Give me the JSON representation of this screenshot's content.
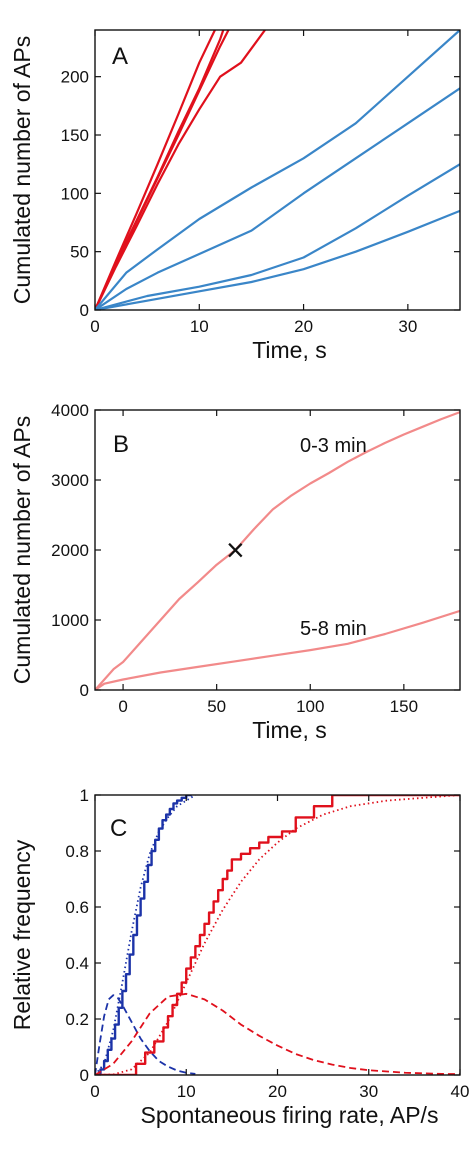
{
  "chart_data": [
    {
      "panel": "A",
      "type": "line",
      "xlabel": "Time, s",
      "ylabel": "Cumulated number of APs",
      "xlim": [
        0,
        35
      ],
      "ylim": [
        0,
        240
      ],
      "xticks": [
        0,
        10,
        20,
        30
      ],
      "yticks": [
        0,
        50,
        100,
        150,
        200
      ],
      "colors": {
        "red": "#e0101c",
        "blue": "#3a86c8"
      },
      "series": [
        {
          "color": "red",
          "x": [
            0,
            2,
            4,
            6,
            8,
            10,
            11.5
          ],
          "y": [
            0,
            42,
            83,
            125,
            168,
            212,
            240
          ]
        },
        {
          "color": "red",
          "x": [
            0,
            2,
            4,
            6,
            8,
            10,
            12,
            12.8
          ],
          "y": [
            0,
            38,
            76,
            113,
            150,
            188,
            226,
            240
          ]
        },
        {
          "color": "red",
          "x": [
            0,
            2,
            4,
            6,
            8,
            10,
            12,
            12.3
          ],
          "y": [
            0,
            40,
            77,
            114,
            153,
            190,
            232,
            240
          ]
        },
        {
          "color": "red",
          "x": [
            0,
            2,
            4,
            6,
            8,
            10,
            12,
            14,
            16.3
          ],
          "y": [
            0,
            37,
            72,
            108,
            142,
            172,
            200,
            212,
            240
          ]
        },
        {
          "color": "blue",
          "x": [
            0,
            3,
            6,
            10,
            15,
            20,
            25,
            30,
            35
          ],
          "y": [
            0,
            32,
            52,
            78,
            105,
            130,
            160,
            200,
            240
          ]
        },
        {
          "color": "blue",
          "x": [
            0,
            3,
            6,
            10,
            15,
            20,
            25,
            30,
            35
          ],
          "y": [
            0,
            18,
            32,
            48,
            68,
            100,
            130,
            160,
            190
          ]
        },
        {
          "color": "blue",
          "x": [
            0,
            5,
            10,
            15,
            20,
            25,
            30,
            35
          ],
          "y": [
            0,
            12,
            20,
            30,
            45,
            70,
            98,
            125
          ]
        },
        {
          "color": "blue",
          "x": [
            0,
            5,
            10,
            15,
            20,
            25,
            30,
            35
          ],
          "y": [
            0,
            8,
            16,
            24,
            35,
            50,
            67,
            85
          ]
        }
      ]
    },
    {
      "panel": "B",
      "type": "line",
      "xlabel": "Time, s",
      "ylabel": "Cumulated number of APs",
      "xlim": [
        -15,
        180
      ],
      "ylim": [
        0,
        4000
      ],
      "xticks": [
        0,
        50,
        100,
        150
      ],
      "yticks": [
        0,
        1000,
        2000,
        3000,
        4000
      ],
      "color": "#f28a8a",
      "series": [
        {
          "name": "0-3 min",
          "x": [
            -15,
            -5,
            0,
            10,
            20,
            30,
            40,
            50,
            60,
            70,
            80,
            90,
            100,
            110,
            120,
            130,
            140,
            150,
            160,
            170,
            180
          ],
          "y": [
            0,
            300,
            400,
            700,
            1000,
            1300,
            1540,
            1790,
            2000,
            2300,
            2580,
            2780,
            2950,
            3100,
            3260,
            3400,
            3530,
            3650,
            3760,
            3870,
            3970
          ]
        },
        {
          "name": "5-8 min",
          "x": [
            -15,
            -10,
            0,
            20,
            40,
            60,
            80,
            100,
            120,
            140,
            160,
            180
          ],
          "y": [
            0,
            90,
            150,
            250,
            330,
            410,
            490,
            570,
            660,
            800,
            960,
            1130
          ]
        }
      ],
      "marker": {
        "symbol": "×",
        "x": 60,
        "y": 2000
      }
    },
    {
      "panel": "C",
      "type": "line",
      "xlabel": "Spontaneous firing rate, AP/s",
      "ylabel": "Relative frequency",
      "xlim": [
        0,
        40
      ],
      "ylim": [
        0,
        1
      ],
      "xticks": [
        0,
        10,
        20,
        30,
        40
      ],
      "yticks": [
        0,
        0.2,
        0.4,
        0.6,
        0.8,
        1
      ],
      "ytick_labels": [
        "0",
        "0.2",
        "0.4",
        "0.6",
        "0.8",
        "1"
      ],
      "colors": {
        "blue": "#1c33a8",
        "red": "#e0101c"
      },
      "series": [
        {
          "color": "blue",
          "style": "step",
          "x": [
            0,
            0.6,
            1.0,
            1.4,
            1.8,
            2.2,
            2.6,
            3.0,
            3.4,
            3.8,
            4.2,
            4.6,
            5.0,
            5.4,
            5.8,
            6.2,
            6.6,
            7.0,
            7.4,
            7.8,
            8.2,
            8.6,
            9.0,
            9.5,
            10.0,
            10.6
          ],
          "y": [
            0,
            0.02,
            0.05,
            0.09,
            0.13,
            0.18,
            0.24,
            0.3,
            0.36,
            0.43,
            0.5,
            0.57,
            0.63,
            0.69,
            0.75,
            0.8,
            0.84,
            0.88,
            0.91,
            0.93,
            0.95,
            0.97,
            0.98,
            0.99,
            1.0,
            1.0
          ]
        },
        {
          "color": "blue",
          "style": "dotted",
          "x": [
            0,
            1,
            2,
            3,
            4,
            5,
            6,
            7,
            8,
            9,
            10,
            11
          ],
          "y": [
            0,
            0.04,
            0.16,
            0.33,
            0.51,
            0.67,
            0.79,
            0.87,
            0.92,
            0.96,
            0.98,
            1.0
          ]
        },
        {
          "color": "blue",
          "style": "dashed",
          "x": [
            0,
            0.5,
            1,
            1.5,
            2,
            2.5,
            3,
            4,
            5,
            6,
            7,
            8,
            9,
            10,
            11
          ],
          "y": [
            0,
            0.11,
            0.21,
            0.27,
            0.285,
            0.275,
            0.25,
            0.19,
            0.13,
            0.085,
            0.05,
            0.03,
            0.016,
            0.008,
            0.004
          ]
        },
        {
          "color": "red",
          "style": "step",
          "x": [
            0,
            4.5,
            5.5,
            6.5,
            7.5,
            8.0,
            8.5,
            9.0,
            9.5,
            10.0,
            10.5,
            11.0,
            11.5,
            12.0,
            12.5,
            13.0,
            13.5,
            14.0,
            14.5,
            15.0,
            16.0,
            17.0,
            18.0,
            19.0,
            20.5,
            22.0,
            24.0,
            26.0,
            31.0,
            40.0
          ],
          "y": [
            0,
            0.04,
            0.08,
            0.12,
            0.17,
            0.21,
            0.25,
            0.29,
            0.33,
            0.38,
            0.42,
            0.46,
            0.5,
            0.54,
            0.58,
            0.62,
            0.66,
            0.7,
            0.73,
            0.77,
            0.79,
            0.81,
            0.83,
            0.85,
            0.87,
            0.92,
            0.96,
            1.0,
            1.0,
            1.0
          ]
        },
        {
          "color": "red",
          "style": "dotted",
          "x": [
            0,
            2,
            4,
            6,
            8,
            10,
            12,
            14,
            16,
            18,
            20,
            22,
            25,
            28,
            32,
            36,
            40
          ],
          "y": [
            0,
            0.002,
            0.02,
            0.08,
            0.19,
            0.33,
            0.47,
            0.59,
            0.69,
            0.77,
            0.83,
            0.88,
            0.93,
            0.96,
            0.98,
            0.99,
            1.0
          ]
        },
        {
          "color": "red",
          "style": "dashed",
          "x": [
            0,
            2,
            4,
            6,
            8,
            10,
            12,
            14,
            16,
            18,
            20,
            22,
            24,
            26,
            28,
            30,
            34,
            38,
            40
          ],
          "y": [
            0,
            0.04,
            0.12,
            0.22,
            0.28,
            0.29,
            0.27,
            0.23,
            0.18,
            0.14,
            0.105,
            0.075,
            0.053,
            0.037,
            0.025,
            0.017,
            0.008,
            0.004,
            0.003
          ]
        }
      ]
    }
  ]
}
